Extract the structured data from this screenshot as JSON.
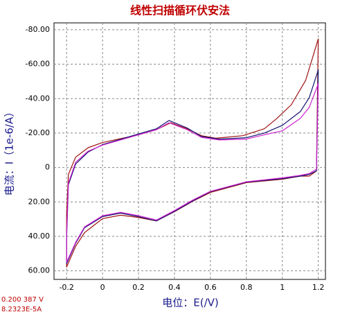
{
  "chart_data": {
    "type": "line",
    "title": "线性扫描循环伏安法",
    "x_label": "电位：E(/V)",
    "y_label": "电流：I（1e-6/A）",
    "status_lines": [
      "0.200 387 V",
      "8.2323E-5A"
    ],
    "xlim": [
      -0.27,
      1.24
    ],
    "ylim": [
      -84,
      65
    ],
    "y_inverted": true,
    "grid": true,
    "xticks": [
      -0.2,
      0,
      0.2,
      0.4,
      0.6,
      0.8,
      1,
      1.2
    ],
    "yticks": [
      {
        "value": -80,
        "label": "-80.00"
      },
      {
        "value": -60,
        "label": "-60.00"
      },
      {
        "value": -40,
        "label": "-40.00"
      },
      {
        "value": -20,
        "label": "-20.00"
      },
      0,
      {
        "value": 20,
        "label": "20.00"
      },
      {
        "value": 40,
        "label": "40.00"
      },
      {
        "value": 60,
        "label": "60.00"
      }
    ],
    "series": [
      {
        "color": "#a01010",
        "x": [
          -0.2,
          -0.19,
          -0.15,
          -0.08,
          0,
          0.2,
          0.3,
          0.38,
          0.47,
          0.55,
          0.63,
          0.78,
          0.9,
          0.97,
          1.05,
          1.13,
          1.2,
          1.19,
          1.15,
          1.1,
          1.0,
          0.8,
          0.6,
          0.5,
          0.4,
          0.3,
          0.2,
          0.1,
          0,
          -0.1,
          -0.15,
          -0.2,
          -0.2
        ],
        "values": [
          27,
          4,
          -6,
          -11.5,
          -14.5,
          -19,
          -22,
          -26,
          -22.5,
          -18.5,
          -17,
          -18.5,
          -22.5,
          -28.5,
          -36.5,
          -50.6,
          -74.7,
          2,
          5,
          5,
          6.8,
          8.8,
          14.5,
          19.7,
          25.7,
          31,
          29,
          27.7,
          29.7,
          37.8,
          45.8,
          57.8,
          27
        ]
      },
      {
        "color": "#101070",
        "x": [
          -0.2,
          -0.19,
          -0.15,
          -0.08,
          0,
          0.2,
          0.3,
          0.37,
          0.47,
          0.55,
          0.65,
          0.8,
          0.9,
          1.0,
          1.1,
          1.15,
          1.2,
          1.19,
          1.15,
          1.1,
          1.0,
          0.8,
          0.6,
          0.5,
          0.4,
          0.3,
          0.2,
          0.1,
          0,
          -0.1,
          -0.15,
          -0.2,
          -0.2
        ],
        "values": [
          41,
          10,
          -2,
          -9,
          -13.3,
          -19.5,
          -22.5,
          -27.3,
          -23,
          -18,
          -16.5,
          -17.3,
          -20,
          -24.5,
          -32.5,
          -40.6,
          -56.6,
          2,
          4,
          5,
          6.5,
          8.5,
          14,
          19.5,
          25.5,
          31,
          28.5,
          26.5,
          28.5,
          35,
          44,
          55.8,
          41
        ]
      },
      {
        "color": "#d020d0",
        "x": [
          -0.2,
          -0.19,
          -0.15,
          -0.08,
          0,
          0.2,
          0.3,
          0.37,
          0.47,
          0.55,
          0.65,
          0.8,
          0.9,
          1.0,
          1.1,
          1.15,
          1.2,
          1.19,
          1.15,
          1.1,
          1.0,
          0.8,
          0.6,
          0.5,
          0.4,
          0.3,
          0.2,
          0.1,
          0,
          -0.1,
          -0.15,
          -0.2,
          -0.2
        ],
        "values": [
          38,
          9,
          -3,
          -9.5,
          -13,
          -19,
          -22,
          -26,
          -22,
          -17.5,
          -16,
          -16.5,
          -19,
          -21.3,
          -28.5,
          -35,
          -48.6,
          1,
          3.5,
          4.5,
          6,
          8.3,
          13.8,
          19,
          25,
          30.5,
          28,
          26,
          28,
          34.5,
          43.5,
          55,
          38
        ]
      }
    ]
  }
}
